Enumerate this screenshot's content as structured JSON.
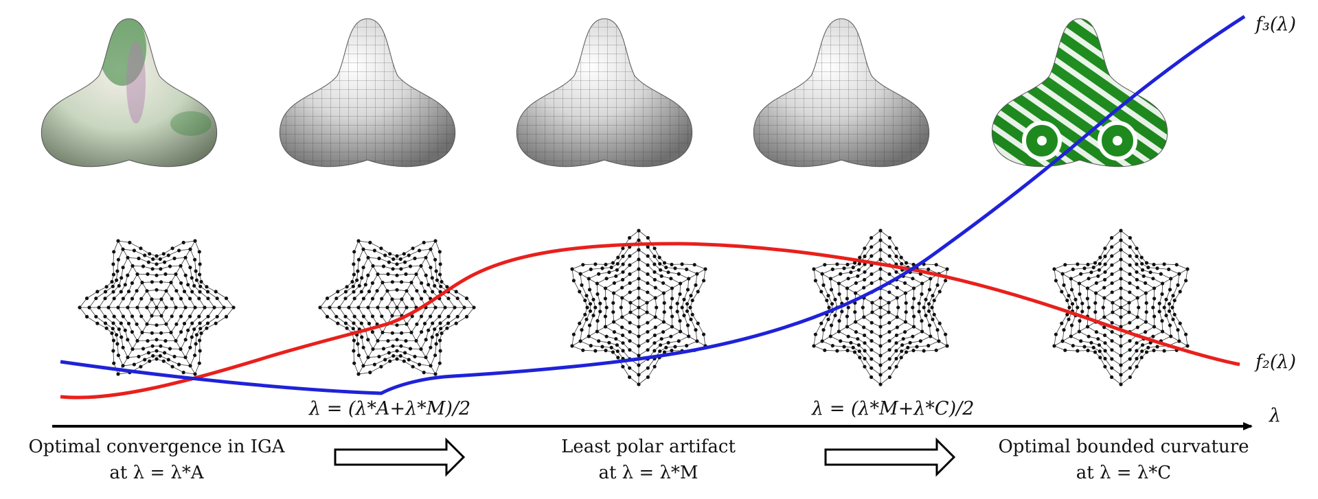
{
  "figure": {
    "axis_label": "λ",
    "curve_labels": {
      "f3": "f₃(λ)",
      "f2": "f₂(λ)"
    },
    "curve_colors": {
      "f3": "#1f22d8",
      "f2": "#e8201c"
    },
    "midpoint_labels": {
      "first": "λ = (λ*A+λ*M)/2",
      "second": "λ = (λ*M+λ*C)/2"
    },
    "captions": {
      "left": {
        "line1": "Optimal convergence in IGA",
        "line2": "at λ = λ*A"
      },
      "center": {
        "line1": "Least polar artifact",
        "line2": "at λ = λ*M"
      },
      "right": {
        "line1": "Optimal bounded curvature",
        "line2": "at λ = λ*C"
      }
    },
    "surfaces": [
      {
        "style": "curvature-shaded",
        "colors": [
          "#2e7d32",
          "#b07fb0",
          "#dfe6d6"
        ]
      },
      {
        "style": "parameter-lines",
        "colors": [
          "#e4e4e4",
          "#333333"
        ]
      },
      {
        "style": "parameter-lines",
        "colors": [
          "#e4e4e4",
          "#333333"
        ]
      },
      {
        "style": "parameter-lines",
        "colors": [
          "#e4e4e4",
          "#333333"
        ]
      },
      {
        "style": "isophote-stripes",
        "colors": [
          "#1e8a1e",
          "#ffffff"
        ]
      }
    ],
    "control_nets": 5
  }
}
